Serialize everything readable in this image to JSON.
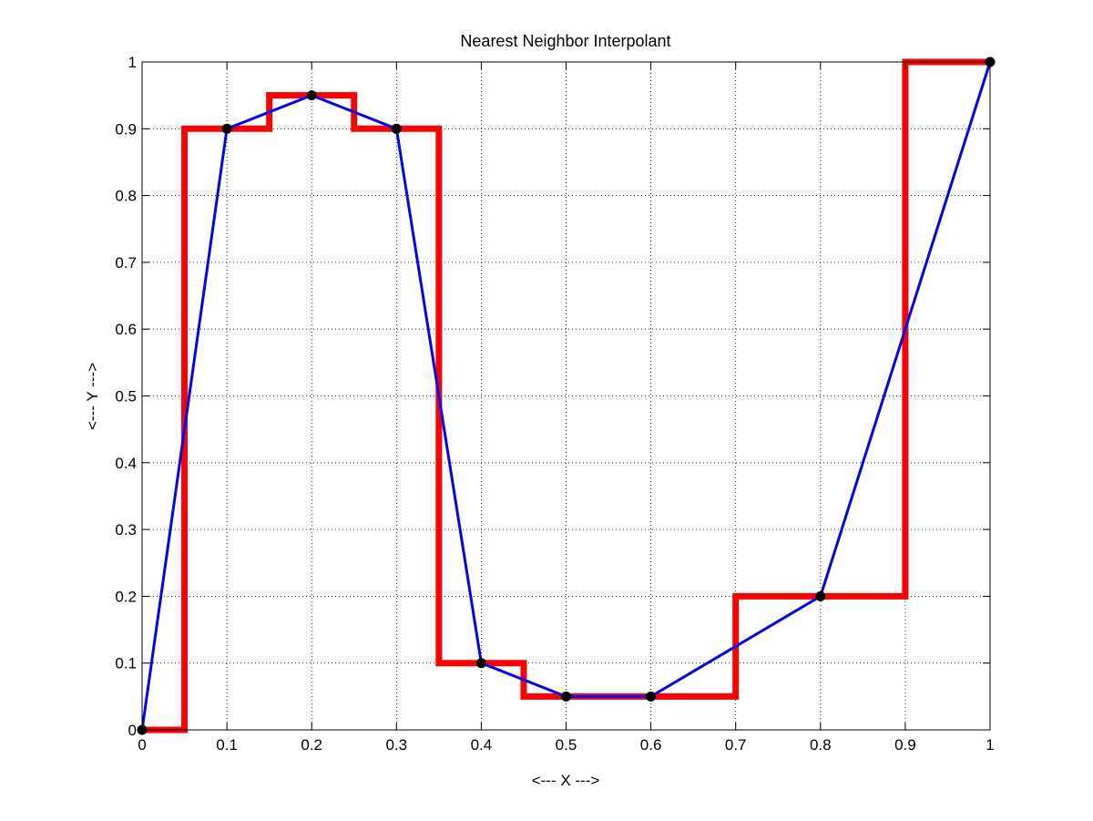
{
  "chart_data": {
    "type": "line",
    "title": "Nearest Neighbor Interpolant",
    "xlabel": "<--- X --->",
    "ylabel": "<--- Y --->",
    "xlim": [
      0,
      1
    ],
    "ylim": [
      0,
      1
    ],
    "grid": true,
    "x_ticks": [
      "0",
      "0.1",
      "0.2",
      "0.3",
      "0.4",
      "0.5",
      "0.6",
      "0.7",
      "0.8",
      "0.9",
      "1"
    ],
    "y_ticks": [
      "0",
      "0.1",
      "0.2",
      "0.3",
      "0.4",
      "0.5",
      "0.6",
      "0.7",
      "0.8",
      "0.9",
      "1"
    ],
    "x": [
      0,
      0.1,
      0.2,
      0.3,
      0.4,
      0.5,
      0.6,
      0.8,
      1.0
    ],
    "y": [
      0,
      0.9,
      0.95,
      0.9,
      0.1,
      0.05,
      0.05,
      0.2,
      1.0
    ],
    "series": [
      {
        "role": "nearest-neighbor-interpolant",
        "style": "step",
        "color": "#ff0000",
        "x": [
          0,
          0.05,
          0.05,
          0.15,
          0.15,
          0.25,
          0.25,
          0.35,
          0.35,
          0.45,
          0.45,
          0.7,
          0.7,
          0.9,
          0.9,
          1.0
        ],
        "y": [
          0,
          0,
          0.9,
          0.9,
          0.95,
          0.95,
          0.9,
          0.9,
          0.1,
          0.1,
          0.05,
          0.05,
          0.2,
          0.2,
          1.0,
          1.0
        ]
      },
      {
        "role": "linear-connection",
        "style": "line",
        "color": "#0000ff",
        "x": [
          0,
          0.1,
          0.2,
          0.3,
          0.4,
          0.5,
          0.6,
          0.8,
          1.0
        ],
        "y": [
          0,
          0.9,
          0.95,
          0.9,
          0.1,
          0.05,
          0.05,
          0.2,
          1.0
        ]
      }
    ],
    "points_color": "#000000"
  }
}
